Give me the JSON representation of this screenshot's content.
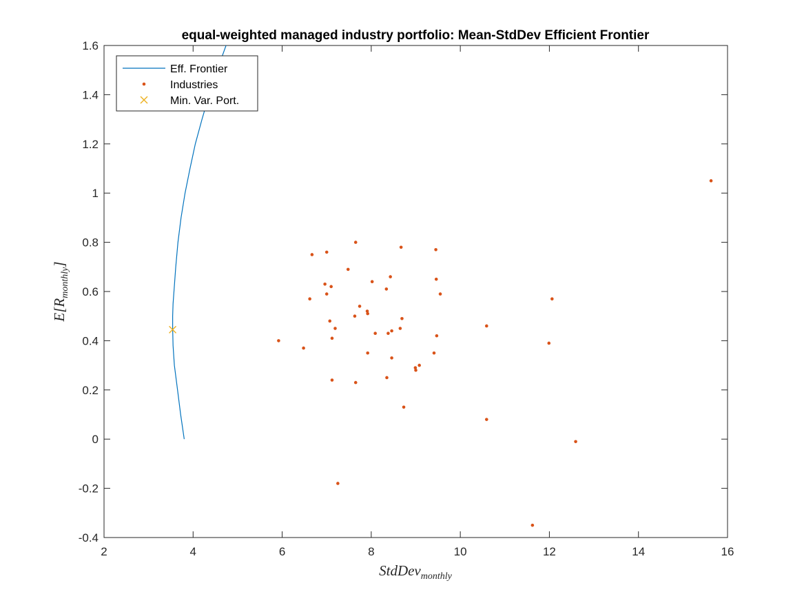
{
  "chart_data": {
    "type": "scatter",
    "title": "equal-weighted managed industry portfolio: Mean-StdDev Efficient Frontier",
    "xlabel": {
      "base": "StdDev",
      "sub": "monthly"
    },
    "ylabel": {
      "base": "E[R",
      "sub": "monthly",
      "close": "]"
    },
    "xlim": [
      2,
      16
    ],
    "ylim": [
      -0.4,
      1.6
    ],
    "xticks": [
      2,
      4,
      6,
      8,
      10,
      12,
      14,
      16
    ],
    "yticks": [
      -0.4,
      -0.2,
      0,
      0.2,
      0.4,
      0.6,
      0.8,
      1,
      1.2,
      1.4,
      1.6
    ],
    "xtick_labels": [
      "2",
      "4",
      "6",
      "8",
      "10",
      "12",
      "14",
      "16"
    ],
    "ytick_labels": [
      "-0.4",
      "-0.2",
      "0",
      "0.2",
      "0.4",
      "0.6",
      "0.8",
      "1",
      "1.2",
      "1.4",
      "1.6"
    ],
    "grid": false,
    "legend_position": "top-left",
    "legend": [
      {
        "label": "Eff. Frontier",
        "marker": "line",
        "color": "#0072BD"
      },
      {
        "label": "Industries",
        "marker": "dot",
        "color": "#D95319"
      },
      {
        "label": "Min. Var. Port.",
        "marker": "x",
        "color": "#EDB120"
      }
    ],
    "series": [
      {
        "name": "Eff. Frontier",
        "kind": "line",
        "color": "#0072BD",
        "x": [
          3.8,
          3.72,
          3.65,
          3.58,
          3.55,
          3.54,
          3.54,
          3.55,
          3.57,
          3.61,
          3.66,
          3.73,
          3.82,
          3.93,
          4.05,
          4.2,
          4.36,
          4.54,
          4.74,
          4.95,
          5.1
        ],
        "y": [
          0.0,
          0.1,
          0.2,
          0.3,
          0.38,
          0.45,
          0.5,
          0.55,
          0.6,
          0.7,
          0.8,
          0.9,
          1.0,
          1.1,
          1.2,
          1.3,
          1.4,
          1.5,
          1.6,
          1.7,
          1.8
        ]
      },
      {
        "name": "Industries",
        "kind": "scatter",
        "color": "#D95319",
        "points": [
          [
            5.92,
            0.4
          ],
          [
            6.48,
            0.37
          ],
          [
            6.62,
            0.57
          ],
          [
            6.67,
            0.75
          ],
          [
            6.96,
            0.63
          ],
          [
            7.0,
            0.76
          ],
          [
            7.0,
            0.59
          ],
          [
            7.07,
            0.48
          ],
          [
            7.1,
            0.62
          ],
          [
            7.12,
            0.41
          ],
          [
            7.12,
            0.24
          ],
          [
            7.19,
            0.45
          ],
          [
            7.25,
            -0.18
          ],
          [
            7.48,
            0.69
          ],
          [
            7.63,
            0.5
          ],
          [
            7.65,
            0.8
          ],
          [
            7.65,
            0.23
          ],
          [
            7.74,
            0.54
          ],
          [
            7.91,
            0.52
          ],
          [
            7.92,
            0.51
          ],
          [
            7.92,
            0.35
          ],
          [
            8.02,
            0.64
          ],
          [
            8.09,
            0.43
          ],
          [
            8.34,
            0.61
          ],
          [
            8.35,
            0.25
          ],
          [
            8.38,
            0.43
          ],
          [
            8.43,
            0.66
          ],
          [
            8.46,
            0.44
          ],
          [
            8.46,
            0.33
          ],
          [
            8.65,
            0.45
          ],
          [
            8.67,
            0.78
          ],
          [
            8.69,
            0.49
          ],
          [
            8.73,
            0.13
          ],
          [
            8.99,
            0.29
          ],
          [
            9.0,
            0.28
          ],
          [
            9.08,
            0.3
          ],
          [
            9.41,
            0.35
          ],
          [
            9.45,
            0.77
          ],
          [
            9.46,
            0.65
          ],
          [
            9.47,
            0.42
          ],
          [
            9.55,
            0.59
          ],
          [
            10.59,
            0.46
          ],
          [
            10.59,
            0.08
          ],
          [
            11.62,
            -0.35
          ],
          [
            11.99,
            0.39
          ],
          [
            12.06,
            0.57
          ],
          [
            12.59,
            -0.01
          ],
          [
            15.63,
            1.05
          ]
        ]
      },
      {
        "name": "Min. Var. Port.",
        "kind": "marker",
        "color": "#EDB120",
        "points": [
          [
            3.54,
            0.445
          ]
        ]
      }
    ]
  }
}
